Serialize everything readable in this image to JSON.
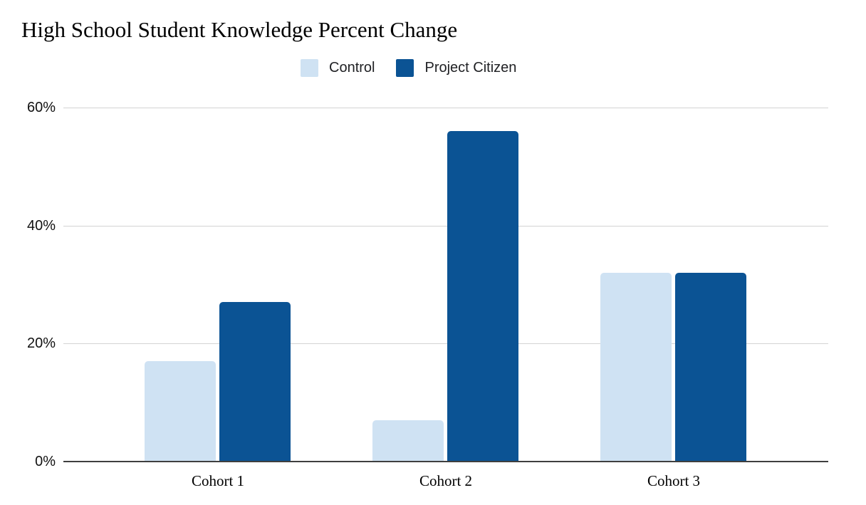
{
  "chart_data": {
    "type": "bar",
    "title": "High School Student Knowledge Percent Change",
    "categories": [
      "Cohort 1",
      "Cohort 2",
      "Cohort 3"
    ],
    "series": [
      {
        "name": "Control",
        "color": "#cfe2f3",
        "values": [
          17,
          7,
          32
        ]
      },
      {
        "name": "Project Citizen",
        "color": "#0b5394",
        "values": [
          27,
          56,
          32
        ]
      }
    ],
    "xlabel": "",
    "ylabel": "",
    "ylim": [
      0,
      60
    ],
    "yticks": [
      {
        "value": 0,
        "label": "0%"
      },
      {
        "value": 20,
        "label": "20%"
      },
      {
        "value": 40,
        "label": "40%"
      },
      {
        "value": 60,
        "label": "60%"
      }
    ],
    "grid": true,
    "legend_position": "top-center"
  },
  "colors": {
    "background": "#ffffff",
    "gridline": "#d3d3d3",
    "axis_line": "#3f3f3f",
    "title_text": "#000000",
    "tick_text": "#111111",
    "category_text": "#000000",
    "legend_text": "#202124"
  }
}
